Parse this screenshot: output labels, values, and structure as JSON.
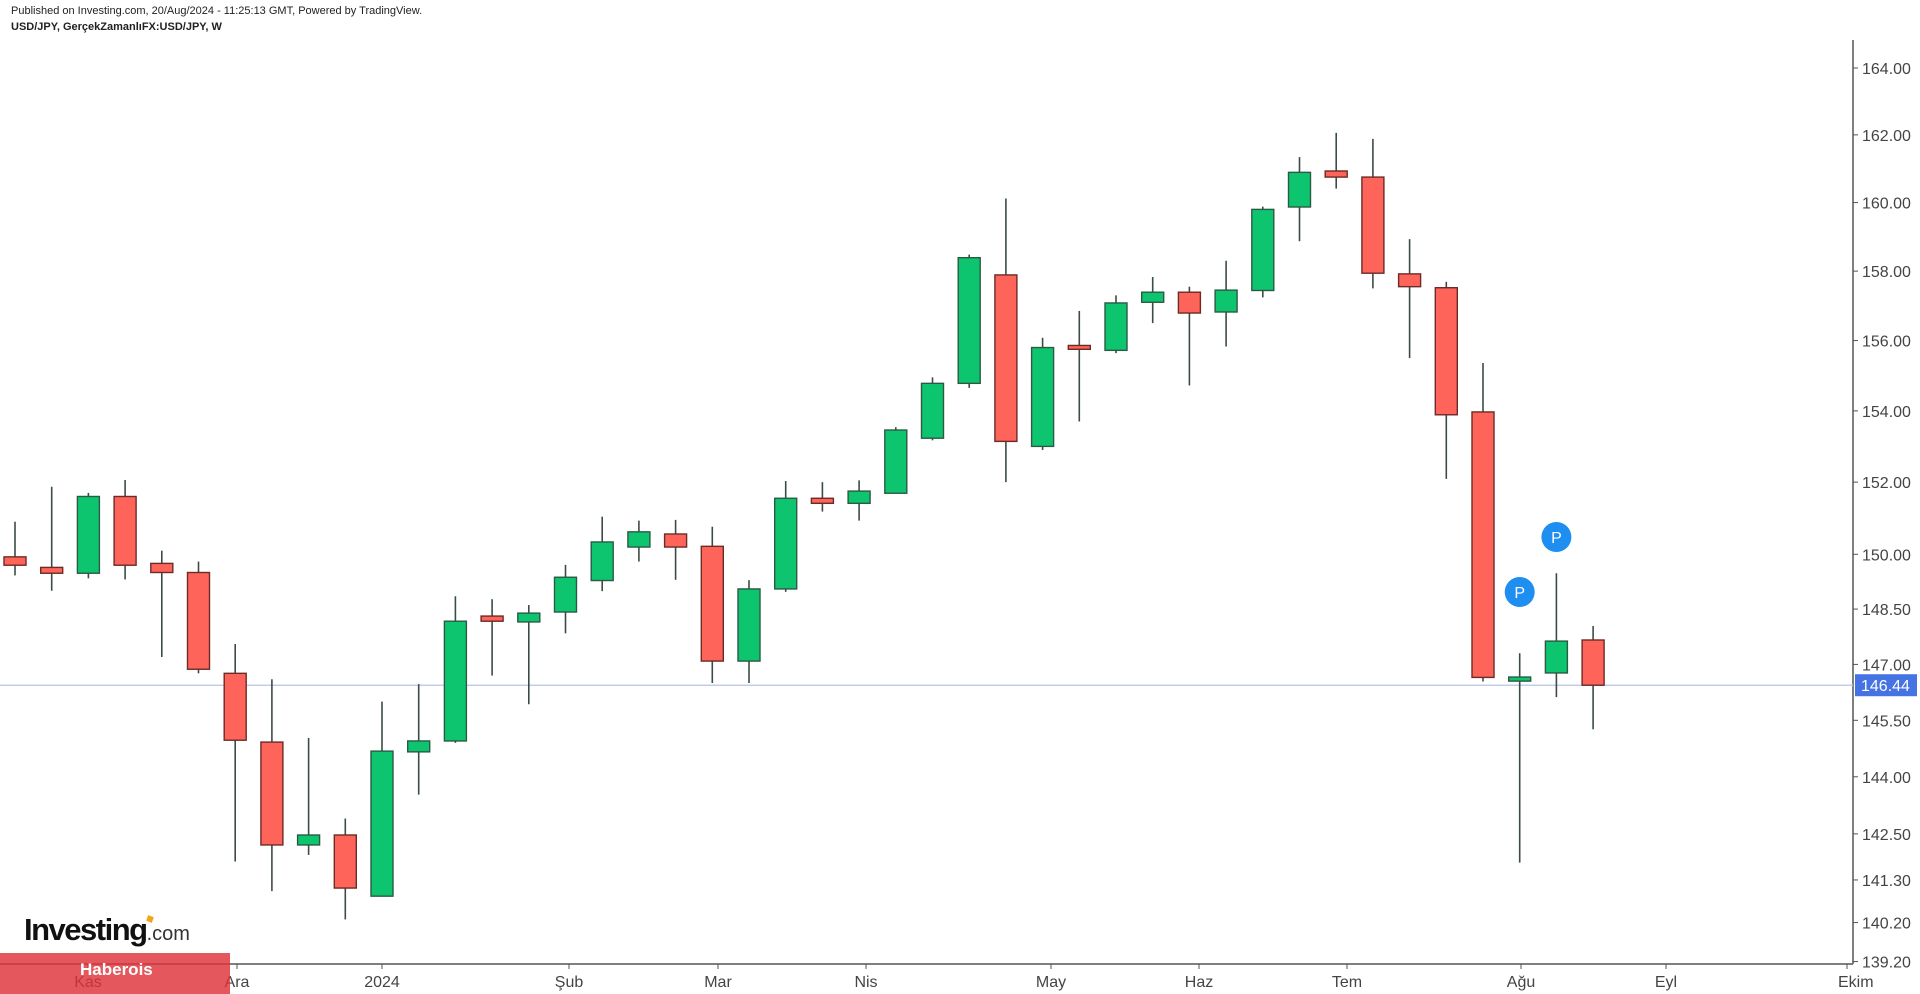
{
  "header": {
    "published": "Published on Investing.com, 20/Aug/2024 - 11:25:13 GMT, Powered by TradingView.",
    "symbol": "USD/JPY, GerçekZamanlıFX:USD/JPY, W"
  },
  "watermark": {
    "logo": "Investing",
    "logo_suffix": ".com",
    "banner": "Haberois"
  },
  "chart_data": {
    "type": "candlestick",
    "title": "USD/JPY, GerçekZamanlıFX:USD/JPY, W",
    "interval": "weekly",
    "scale": "log",
    "y_ticks": [
      "164.00",
      "162.00",
      "160.00",
      "158.00",
      "156.00",
      "154.00",
      "152.00",
      "150.00",
      "148.50",
      "147.00",
      "145.50",
      "144.00",
      "142.50",
      "141.30",
      "140.20",
      "139.20"
    ],
    "x_ticks": [
      "Kas",
      "Ara",
      "2024",
      "Şub",
      "Mar",
      "Nis",
      "May",
      "Haz",
      "Tem",
      "Ağu",
      "Eyl",
      "Ekim"
    ],
    "ylim": [
      139.0,
      165.0
    ],
    "last_price": 146.44,
    "last_price_label": "146.44",
    "colors": {
      "up": "#0ec56f",
      "down": "#ff645a",
      "border": "#2f3e37",
      "last_price": "#4673e3",
      "price_line": "#b9c3e6",
      "marker": "#1e8ff0"
    },
    "markers": [
      {
        "candle": 42,
        "label": "P"
      },
      {
        "candle": 43,
        "label": "P"
      }
    ],
    "candles_ohlc": [
      [
        149.93,
        150.9,
        149.42,
        149.7
      ],
      [
        149.64,
        151.87,
        149.0,
        149.48
      ],
      [
        149.48,
        151.7,
        149.34,
        151.6
      ],
      [
        151.6,
        152.06,
        149.31,
        149.7
      ],
      [
        149.75,
        150.1,
        147.2,
        149.5
      ],
      [
        149.5,
        149.8,
        146.76,
        146.87
      ],
      [
        146.76,
        147.55,
        141.78,
        144.97
      ],
      [
        144.92,
        146.6,
        141.01,
        142.21
      ],
      [
        142.21,
        145.03,
        141.95,
        142.47
      ],
      [
        142.47,
        142.9,
        140.28,
        141.09
      ],
      [
        140.88,
        146.0,
        140.88,
        144.68
      ],
      [
        144.66,
        146.47,
        143.53,
        144.95
      ],
      [
        144.95,
        148.85,
        144.9,
        148.17
      ],
      [
        148.31,
        148.77,
        146.7,
        148.17
      ],
      [
        148.15,
        148.61,
        145.93,
        148.39
      ],
      [
        148.42,
        149.71,
        147.84,
        149.37
      ],
      [
        149.28,
        151.04,
        148.99,
        150.34
      ],
      [
        150.2,
        150.93,
        149.8,
        150.62
      ],
      [
        150.56,
        150.95,
        149.3,
        150.2
      ],
      [
        150.22,
        150.76,
        146.5,
        147.09
      ],
      [
        147.09,
        149.29,
        146.5,
        149.05
      ],
      [
        149.05,
        152.03,
        148.97,
        151.55
      ],
      [
        151.55,
        152.0,
        151.18,
        151.41
      ],
      [
        151.41,
        152.05,
        150.93,
        151.75
      ],
      [
        151.69,
        153.54,
        151.69,
        153.46
      ],
      [
        153.23,
        154.95,
        153.17,
        154.78
      ],
      [
        154.78,
        158.48,
        154.65,
        158.39
      ],
      [
        157.89,
        160.12,
        152.0,
        153.14
      ],
      [
        153.0,
        156.08,
        152.9,
        155.8
      ],
      [
        155.86,
        156.85,
        153.7,
        155.75
      ],
      [
        155.72,
        157.3,
        155.64,
        157.08
      ],
      [
        157.1,
        157.83,
        156.5,
        157.39
      ],
      [
        157.39,
        157.55,
        154.72,
        156.79
      ],
      [
        156.82,
        158.3,
        155.83,
        157.45
      ],
      [
        157.44,
        159.88,
        157.24,
        159.8
      ],
      [
        159.87,
        161.34,
        158.87,
        160.89
      ],
      [
        160.93,
        162.06,
        160.41,
        160.75
      ],
      [
        160.75,
        161.88,
        157.5,
        157.94
      ],
      [
        157.92,
        158.93,
        155.5,
        157.55
      ],
      [
        157.52,
        157.69,
        152.09,
        153.89
      ],
      [
        153.97,
        155.36,
        146.54,
        146.65
      ],
      [
        146.55,
        147.3,
        141.75,
        146.66
      ],
      [
        146.77,
        149.48,
        146.12,
        147.63
      ],
      [
        147.66,
        148.04,
        145.26,
        146.44
      ]
    ]
  }
}
